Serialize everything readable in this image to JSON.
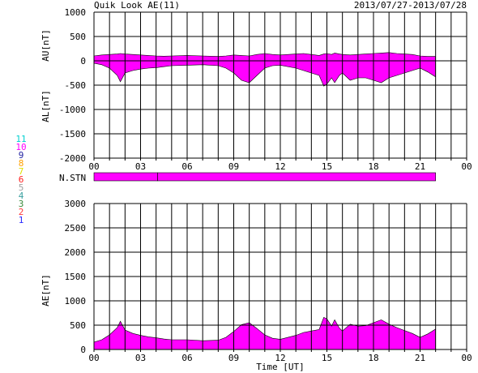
{
  "header": {
    "title": "Quik Look AE(11)",
    "date_range": "2013/07/27-2013/07/28"
  },
  "colors": {
    "fill": "#ff00ff",
    "grid": "#000000",
    "background": "#ffffff",
    "legend": [
      "#2a2aff",
      "#ff3a3a",
      "#3a8a3a",
      "#3aa0a0",
      "#a0a0a0",
      "#ff2020",
      "#e0e000",
      "#ffa000",
      "#2020a0",
      "#ff00ff",
      "#00d0d0"
    ]
  },
  "legend": {
    "entries": [
      "11",
      "10",
      "9",
      "8",
      "7",
      "6",
      "5",
      "4",
      "3",
      "2",
      "1"
    ]
  },
  "chart_data": [
    {
      "type": "area",
      "title": "Quik Look AE(11)",
      "ylabel_upper": "AU[nT]",
      "ylabel_lower": "AL[nT]",
      "ylim": [
        -2000,
        1000
      ],
      "yticks": [
        "1000",
        "500",
        "0",
        "-500",
        "-1000",
        "-1500",
        "-2000"
      ],
      "xticks": [
        "00",
        "03",
        "06",
        "09",
        "12",
        "15",
        "18",
        "21",
        "00"
      ],
      "xlim": [
        0,
        24
      ],
      "grid": true,
      "series": [
        {
          "x": [
            0,
            0.5,
            1,
            1.5,
            1.7,
            2,
            2.5,
            3,
            3.5,
            4,
            4.5,
            5,
            6,
            7,
            8,
            8.5,
            9,
            9.5,
            10,
            10.5,
            11,
            11.5,
            12,
            13,
            13.5,
            14,
            14.5,
            14.8,
            15,
            15.3,
            15.5,
            15.8,
            16,
            16.5,
            17,
            17.5,
            18,
            18.5,
            19,
            19.5,
            20,
            20.5,
            21,
            21.5,
            22
          ],
          "values": [
            100,
            120,
            130,
            140,
            150,
            140,
            130,
            120,
            110,
            100,
            95,
            100,
            110,
            100,
            90,
            100,
            120,
            110,
            100,
            130,
            150,
            130,
            120,
            140,
            150,
            130,
            110,
            140,
            150,
            130,
            160,
            140,
            130,
            120,
            130,
            140,
            150,
            160,
            170,
            150,
            140,
            130,
            100,
            90,
            90
          ]
        },
        {
          "x": [
            0,
            0.5,
            1,
            1.5,
            1.7,
            2,
            2.5,
            3,
            3.5,
            4,
            4.5,
            5,
            6,
            7,
            8,
            8.5,
            9,
            9.5,
            10,
            10.5,
            11,
            11.5,
            12,
            13,
            13.5,
            14,
            14.5,
            14.8,
            15,
            15.3,
            15.5,
            15.8,
            16,
            16.5,
            17,
            17.5,
            18,
            18.5,
            19,
            19.5,
            20,
            20.5,
            21,
            21.5,
            22
          ],
          "values": [
            -50,
            -80,
            -150,
            -300,
            -430,
            -250,
            -200,
            -170,
            -150,
            -140,
            -120,
            -100,
            -90,
            -80,
            -100,
            -150,
            -250,
            -400,
            -450,
            -300,
            -150,
            -100,
            -90,
            -150,
            -200,
            -250,
            -300,
            -520,
            -480,
            -350,
            -450,
            -300,
            -250,
            -400,
            -350,
            -350,
            -400,
            -450,
            -350,
            -300,
            -250,
            -200,
            -150,
            -230,
            -330
          ]
        }
      ]
    },
    {
      "type": "bar",
      "ylabel": "N.STN",
      "xlim": [
        0,
        24
      ],
      "segments": [
        [
          0,
          4.1
        ],
        [
          4.1,
          22
        ]
      ],
      "values": [
        11,
        11
      ]
    },
    {
      "type": "area",
      "ylabel": "AE[nT]",
      "xlabel": "Time [UT]",
      "ylim": [
        0,
        3000
      ],
      "yticks": [
        "3000",
        "2500",
        "2000",
        "1500",
        "1000",
        "500",
        "0"
      ],
      "xticks": [
        "00",
        "03",
        "06",
        "09",
        "12",
        "15",
        "18",
        "21",
        "00"
      ],
      "xlim": [
        0,
        24
      ],
      "grid": true,
      "series": [
        {
          "x": [
            0,
            0.5,
            1,
            1.5,
            1.7,
            2,
            2.5,
            3,
            3.5,
            4,
            4.5,
            5,
            6,
            7,
            8,
            8.5,
            9,
            9.5,
            10,
            10.5,
            11,
            11.5,
            12,
            13,
            13.5,
            14,
            14.5,
            14.8,
            15,
            15.3,
            15.5,
            15.8,
            16,
            16.5,
            17,
            17.5,
            18,
            18.5,
            19,
            19.5,
            20,
            20.5,
            21,
            21.5,
            22
          ],
          "values": [
            150,
            200,
            300,
            450,
            580,
            400,
            330,
            290,
            260,
            240,
            215,
            200,
            200,
            180,
            190,
            250,
            370,
            510,
            550,
            430,
            300,
            230,
            210,
            290,
            350,
            380,
            410,
            660,
            630,
            480,
            610,
            440,
            380,
            520,
            480,
            490,
            550,
            610,
            520,
            450,
            390,
            330,
            250,
            320,
            420
          ]
        }
      ]
    }
  ]
}
